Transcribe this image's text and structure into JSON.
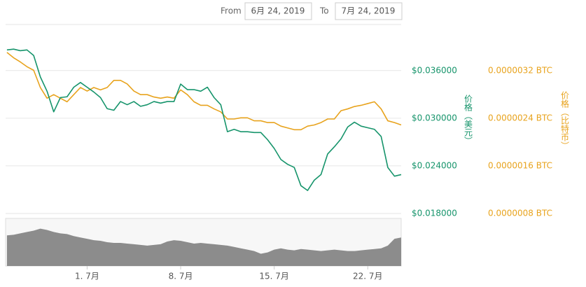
{
  "chart_data": {
    "type": "line",
    "range_from_label": "From",
    "range_from": "6月 24, 2019",
    "range_to_label": "To",
    "range_to": "7月 24, 2019",
    "ylabel": "价格（美元）",
    "y2label": "价格（比特币）",
    "xlim": [
      0.9,
      30.5
    ],
    "xticks": [
      {
        "value": 7,
        "label": "1. 7月"
      },
      {
        "value": 14,
        "label": "8. 7月"
      },
      {
        "value": 21,
        "label": "15. 7月"
      },
      {
        "value": 28,
        "label": "22. 7月"
      }
    ],
    "ylim": [
      0.018,
      0.0418
    ],
    "yticks": [
      {
        "value": 0.018,
        "label": "$0.018000"
      },
      {
        "value": 0.024,
        "label": "$0.024000"
      },
      {
        "value": 0.03,
        "label": "$0.030000"
      },
      {
        "value": 0.036,
        "label": "$0.036000"
      }
    ],
    "y2lim": [
      8e-07,
      3.98e-06
    ],
    "y2ticks": [
      {
        "value": 8e-07,
        "label": "0.0000008 BTC"
      },
      {
        "value": 1.6e-06,
        "label": "0.0000016 BTC"
      },
      {
        "value": 2.4e-06,
        "label": "0.0000024 BTC"
      },
      {
        "value": 3.2e-06,
        "label": "0.0000032 BTC"
      }
    ],
    "grid": true,
    "x": [
      1,
      1.5,
      2,
      2.5,
      3,
      3.5,
      4,
      4.5,
      5,
      5.5,
      6,
      6.5,
      7,
      7.5,
      8,
      8.5,
      9,
      9.5,
      10,
      10.5,
      11,
      11.5,
      12,
      12.5,
      13,
      13.5,
      14,
      14.5,
      15,
      15.5,
      16,
      16.5,
      17,
      17.5,
      18,
      18.5,
      19,
      19.5,
      20,
      20.5,
      21,
      21.5,
      22,
      22.5,
      23,
      23.5,
      24,
      24.5,
      25,
      25.5,
      26,
      26.5,
      27,
      27.5,
      28,
      28.5,
      29,
      29.5,
      30,
      30.5
    ],
    "series": [
      {
        "name": "价格（美元）",
        "color": "#16946b",
        "axis": "y",
        "values": [
          0.0386,
          0.0387,
          0.0385,
          0.0386,
          0.0379,
          0.0352,
          0.0334,
          0.0308,
          0.0326,
          0.0327,
          0.0339,
          0.0345,
          0.0339,
          0.0333,
          0.0326,
          0.0312,
          0.031,
          0.0321,
          0.0317,
          0.0321,
          0.0315,
          0.0317,
          0.0321,
          0.0319,
          0.0321,
          0.0321,
          0.0343,
          0.0336,
          0.0336,
          0.0334,
          0.0339,
          0.0326,
          0.0317,
          0.0283,
          0.0286,
          0.0283,
          0.0283,
          0.0282,
          0.0282,
          0.0273,
          0.0262,
          0.0248,
          0.0242,
          0.0238,
          0.0215,
          0.0209,
          0.0222,
          0.0229,
          0.0255,
          0.0264,
          0.0274,
          0.0289,
          0.0295,
          0.029,
          0.0288,
          0.0286,
          0.0277,
          0.0238,
          0.0227,
          0.0229
        ]
      },
      {
        "name": "价格（比特币）",
        "color": "#e8a31d",
        "axis": "y2",
        "values": [
          3.51e-06,
          3.42e-06,
          3.35e-06,
          3.27e-06,
          3.21e-06,
          2.92e-06,
          2.74e-06,
          2.8e-06,
          2.74e-06,
          2.68e-06,
          2.8e-06,
          2.92e-06,
          2.86e-06,
          2.92e-06,
          2.88e-06,
          2.92e-06,
          3.04e-06,
          3.04e-06,
          2.98e-06,
          2.86e-06,
          2.8e-06,
          2.8e-06,
          2.76e-06,
          2.74e-06,
          2.76e-06,
          2.74e-06,
          2.88e-06,
          2.8e-06,
          2.68e-06,
          2.62e-06,
          2.62e-06,
          2.56e-06,
          2.51e-06,
          2.39e-06,
          2.39e-06,
          2.41e-06,
          2.41e-06,
          2.36e-06,
          2.36e-06,
          2.33e-06,
          2.33e-06,
          2.27e-06,
          2.24e-06,
          2.21e-06,
          2.21e-06,
          2.27e-06,
          2.29e-06,
          2.33e-06,
          2.39e-06,
          2.39e-06,
          2.53e-06,
          2.56e-06,
          2.6e-06,
          2.62e-06,
          2.65e-06,
          2.68e-06,
          2.56e-06,
          2.36e-06,
          2.33e-06,
          2.29e-06
        ]
      }
    ],
    "volume": {
      "color": "#8c8c8c",
      "ylim": [
        0,
        70
      ],
      "values": [
        45,
        46,
        48,
        50,
        52,
        55,
        53,
        50,
        48,
        47,
        44,
        42,
        40,
        38,
        37,
        35,
        34,
        34,
        33,
        32,
        31,
        30,
        31,
        32,
        36,
        38,
        37,
        35,
        33,
        34,
        33,
        32,
        31,
        30,
        28,
        26,
        24,
        22,
        18,
        20,
        24,
        26,
        24,
        23,
        25,
        24,
        23,
        22,
        23,
        24,
        23,
        22,
        22,
        23,
        24,
        25,
        26,
        30,
        40,
        42
      ]
    }
  }
}
